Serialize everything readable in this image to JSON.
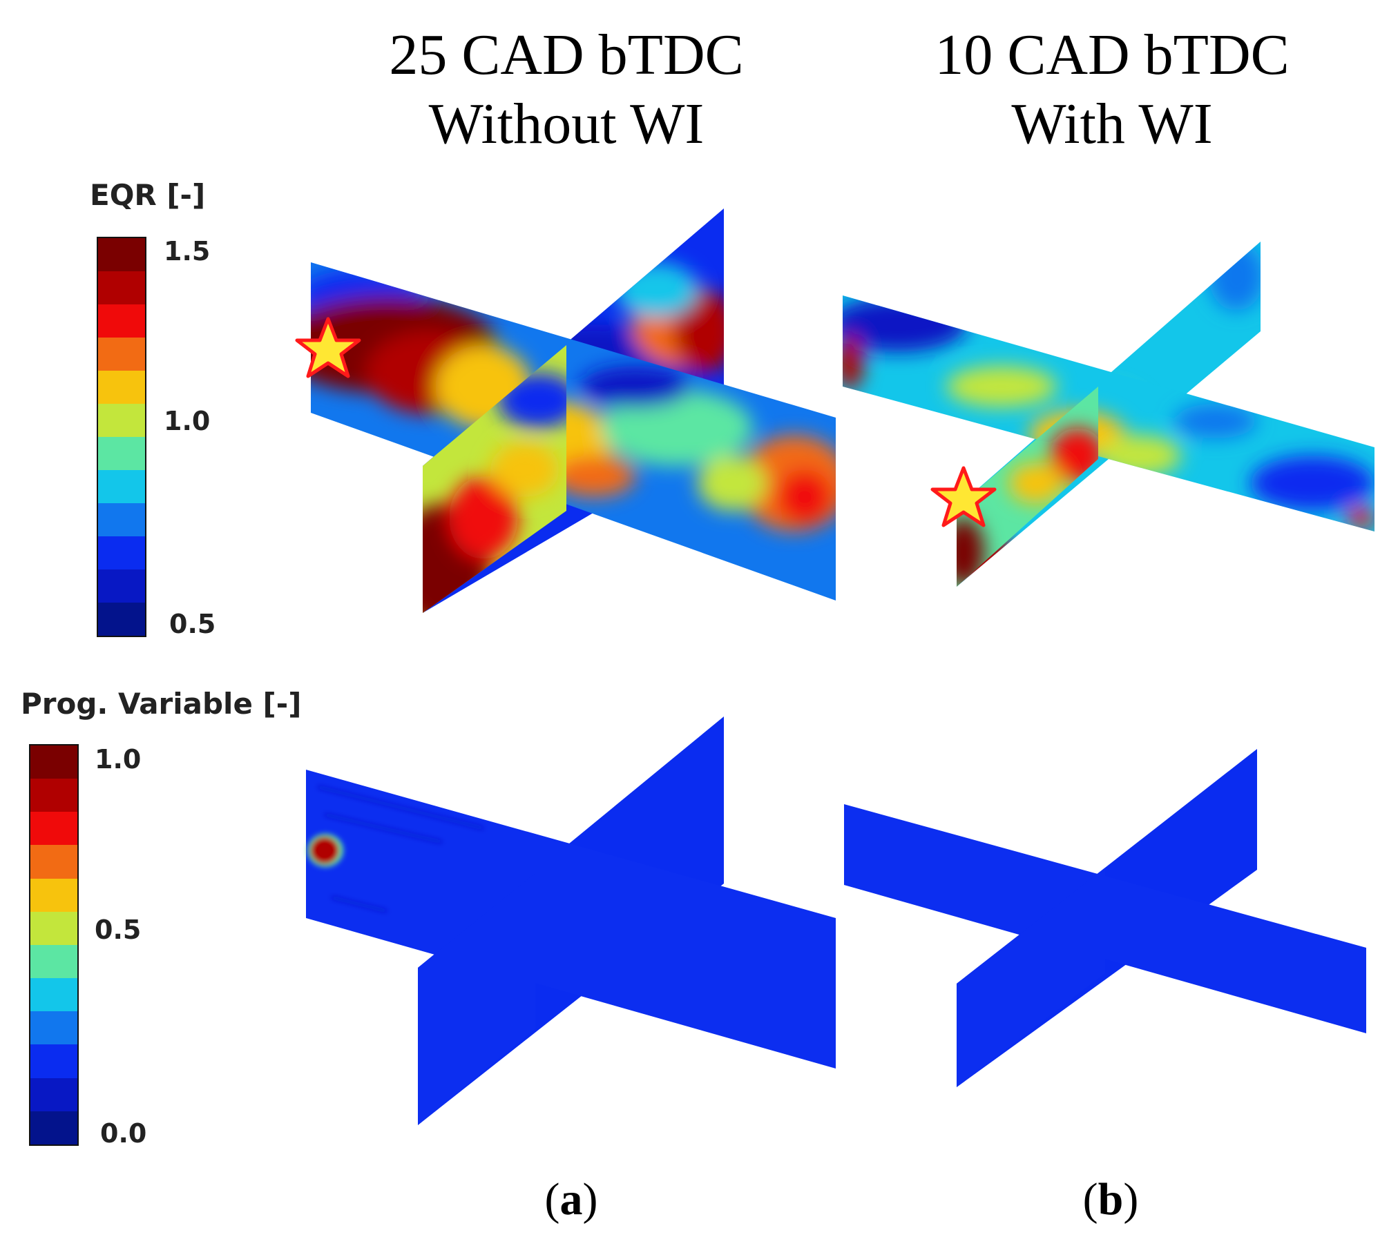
{
  "columns": [
    {
      "line1": "25 CAD bTDC",
      "line2": "Without WI"
    },
    {
      "line1": "10 CAD bTDC",
      "line2": "With WI"
    }
  ],
  "legend_eqr": {
    "title": "EQR [-]",
    "ticks": [
      "1.5",
      "1.0",
      "0.5"
    ],
    "colors": [
      "#7a0000",
      "#b00000",
      "#f00a0a",
      "#f26b14",
      "#f7c30d",
      "#c3e63c",
      "#5ce6a3",
      "#13c6ea",
      "#1177ee",
      "#0a2cf0",
      "#0818c4",
      "#03138c"
    ]
  },
  "legend_prog": {
    "title": "Prog. Variable [-]",
    "ticks": [
      "1.0",
      "0.5",
      "0.0"
    ],
    "colors": [
      "#7a0000",
      "#b00000",
      "#f00a0a",
      "#f26b14",
      "#f7c30d",
      "#c3e63c",
      "#5ce6a3",
      "#13c6ea",
      "#1177ee",
      "#0a2cf0",
      "#0818c4",
      "#03138c"
    ]
  },
  "captions": [
    {
      "open": "(",
      "letter": "a",
      "close": ")"
    },
    {
      "open": "(",
      "letter": "b",
      "close": ")"
    }
  ]
}
